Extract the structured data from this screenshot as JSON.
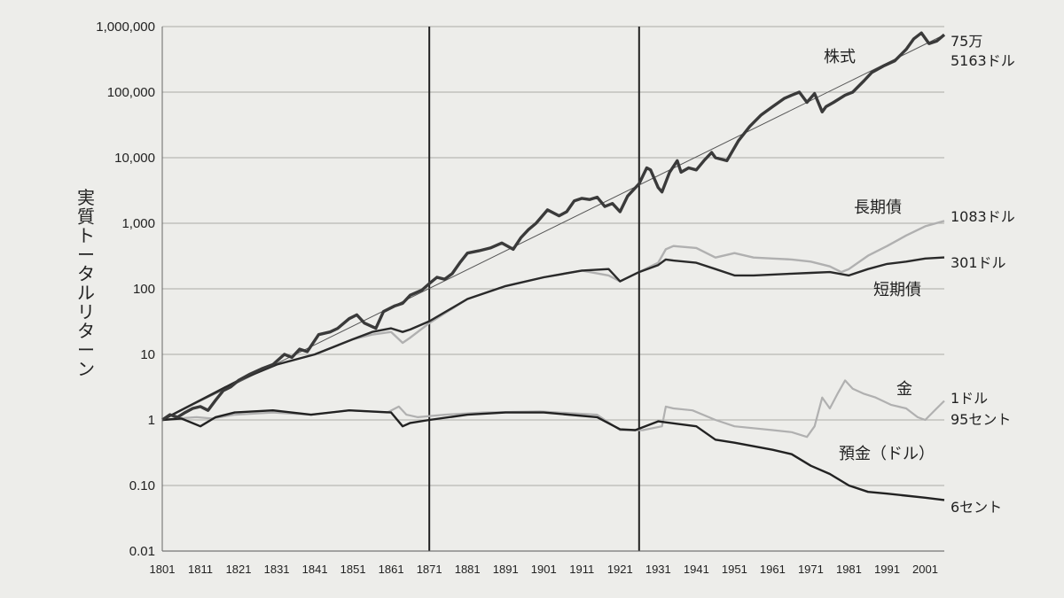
{
  "chart_data": {
    "type": "line",
    "ylabel": "実質トータルリターン",
    "y_scale": "log",
    "ylim": [
      0.01,
      1000000
    ],
    "xlim": [
      1801,
      2006
    ],
    "y_ticks": [
      {
        "value": 1000000,
        "label": "1,000,000"
      },
      {
        "value": 100000,
        "label": "100,000"
      },
      {
        "value": 10000,
        "label": "10,000"
      },
      {
        "value": 1000,
        "label": "1,000"
      },
      {
        "value": 100,
        "label": "100"
      },
      {
        "value": 10,
        "label": "10"
      },
      {
        "value": 1,
        "label": "1"
      },
      {
        "value": 0.1,
        "label": "0.10"
      },
      {
        "value": 0.01,
        "label": "0.01"
      }
    ],
    "x_ticks": [
      1801,
      1811,
      1821,
      1831,
      1841,
      1851,
      1861,
      1871,
      1881,
      1891,
      1901,
      1911,
      1921,
      1931,
      1941,
      1951,
      1961,
      1971,
      1981,
      1991,
      2001
    ],
    "grid": true,
    "vertical_markers": [
      1871,
      1926
    ],
    "trend_line": {
      "x": [
        1801,
        2006
      ],
      "y": [
        1,
        750000
      ]
    },
    "series": [
      {
        "name": "株式",
        "end_label": [
          "75万",
          "5163ドル"
        ],
        "color": "#3a3a3a",
        "x": [
          1801,
          1803,
          1805,
          1807,
          1809,
          1811,
          1813,
          1815,
          1817,
          1819,
          1821,
          1824,
          1827,
          1830,
          1833,
          1835,
          1837,
          1839,
          1842,
          1845,
          1847,
          1850,
          1852,
          1854,
          1857,
          1859,
          1862,
          1864,
          1866,
          1869,
          1871,
          1873,
          1875,
          1877,
          1879,
          1881,
          1884,
          1887,
          1890,
          1893,
          1895,
          1897,
          1899,
          1902,
          1905,
          1907,
          1909,
          1911,
          1913,
          1915,
          1917,
          1919,
          1921,
          1923,
          1926,
          1928,
          1929,
          1931,
          1932,
          1934,
          1936,
          1937,
          1939,
          1941,
          1943,
          1945,
          1946,
          1949,
          1952,
          1955,
          1958,
          1961,
          1964,
          1966,
          1968,
          1970,
          1972,
          1974,
          1975,
          1977,
          1980,
          1982,
          1985,
          1987,
          1990,
          1993,
          1996,
          1998,
          2000,
          2002,
          2004,
          2006
        ],
        "y": [
          1,
          1.2,
          1.1,
          1.3,
          1.5,
          1.6,
          1.4,
          2,
          2.8,
          3.2,
          4,
          5,
          6,
          7,
          10,
          9,
          12,
          11,
          20,
          22,
          25,
          35,
          40,
          30,
          25,
          45,
          55,
          60,
          80,
          95,
          120,
          150,
          140,
          170,
          250,
          350,
          380,
          420,
          500,
          400,
          600,
          800,
          1000,
          1600,
          1300,
          1500,
          2200,
          2400,
          2300,
          2500,
          1800,
          2000,
          1500,
          2600,
          4000,
          7000,
          6500,
          3500,
          3000,
          6000,
          9000,
          6000,
          7000,
          6500,
          9000,
          12000,
          10000,
          9000,
          18000,
          30000,
          45000,
          60000,
          80000,
          90000,
          100000,
          70000,
          95000,
          50000,
          60000,
          70000,
          90000,
          100000,
          150000,
          200000,
          250000,
          300000,
          450000,
          650000,
          800000,
          550000,
          600000,
          750000
        ]
      },
      {
        "name": "長期債",
        "end_label": [
          "1083ドル"
        ],
        "color": "#b0b0b0",
        "x": [
          1801,
          1811,
          1821,
          1831,
          1841,
          1851,
          1856,
          1861,
          1864,
          1866,
          1871,
          1881,
          1891,
          1901,
          1911,
          1918,
          1921,
          1926,
          1931,
          1933,
          1935,
          1941,
          1946,
          1951,
          1956,
          1961,
          1966,
          1971,
          1976,
          1979,
          1981,
          1986,
          1991,
          1996,
          2001,
          2006
        ],
        "y": [
          1,
          2,
          4,
          7,
          10,
          17,
          20,
          22,
          15,
          18,
          30,
          70,
          110,
          150,
          190,
          160,
          130,
          180,
          250,
          400,
          450,
          420,
          300,
          350,
          300,
          290,
          280,
          260,
          220,
          180,
          200,
          320,
          450,
          650,
          900,
          1083
        ]
      },
      {
        "name": "短期債",
        "end_label": [
          "301ドル"
        ],
        "color": "#2a2a2a",
        "x": [
          1801,
          1811,
          1821,
          1831,
          1841,
          1851,
          1856,
          1861,
          1864,
          1866,
          1871,
          1881,
          1891,
          1901,
          1911,
          1918,
          1921,
          1926,
          1931,
          1933,
          1935,
          1941,
          1946,
          1951,
          1956,
          1961,
          1966,
          1971,
          1976,
          1981,
          1986,
          1991,
          1996,
          2001,
          2006
        ],
        "y": [
          1,
          2,
          4,
          7,
          10,
          17,
          22,
          25,
          22,
          24,
          32,
          70,
          110,
          150,
          190,
          200,
          130,
          180,
          230,
          280,
          270,
          250,
          200,
          160,
          160,
          165,
          170,
          175,
          180,
          160,
          200,
          240,
          260,
          290,
          301
        ]
      },
      {
        "name": "金",
        "end_label": [
          "1ドル",
          "95セント"
        ],
        "color": "#b0b0b0",
        "x": [
          1801,
          1805,
          1810,
          1814,
          1820,
          1830,
          1840,
          1850,
          1860,
          1863,
          1865,
          1868,
          1875,
          1885,
          1900,
          1915,
          1921,
          1927,
          1932,
          1933,
          1935,
          1940,
          1946,
          1951,
          1961,
          1966,
          1970,
          1972,
          1974,
          1976,
          1978,
          1980,
          1982,
          1985,
          1988,
          1992,
          1996,
          1999,
          2001,
          2004,
          2006
        ],
        "y": [
          1,
          1.05,
          1.1,
          1.05,
          1.2,
          1.3,
          1.2,
          1.4,
          1.3,
          1.6,
          1.2,
          1.1,
          1.2,
          1.3,
          1.35,
          1.2,
          0.7,
          0.7,
          0.8,
          1.6,
          1.5,
          1.4,
          1.0,
          0.8,
          0.7,
          0.65,
          0.55,
          0.8,
          2.2,
          1.5,
          2.5,
          4,
          3,
          2.5,
          2.2,
          1.7,
          1.5,
          1.1,
          1.0,
          1.5,
          1.95
        ]
      },
      {
        "name": "預金（ドル）",
        "end_label": [
          "6セント"
        ],
        "color": "#222222",
        "x": [
          1801,
          1806,
          1811,
          1815,
          1820,
          1830,
          1840,
          1850,
          1861,
          1864,
          1866,
          1871,
          1881,
          1891,
          1901,
          1915,
          1921,
          1925,
          1931,
          1941,
          1946,
          1951,
          1961,
          1966,
          1971,
          1976,
          1981,
          1986,
          1991,
          1996,
          2001,
          2006
        ],
        "y": [
          1,
          1.05,
          0.8,
          1.1,
          1.3,
          1.4,
          1.2,
          1.4,
          1.3,
          0.8,
          0.9,
          1.0,
          1.2,
          1.3,
          1.3,
          1.1,
          0.72,
          0.7,
          0.95,
          0.8,
          0.5,
          0.45,
          0.35,
          0.3,
          0.2,
          0.15,
          0.1,
          0.08,
          0.075,
          0.07,
          0.065,
          0.06
        ]
      }
    ]
  }
}
